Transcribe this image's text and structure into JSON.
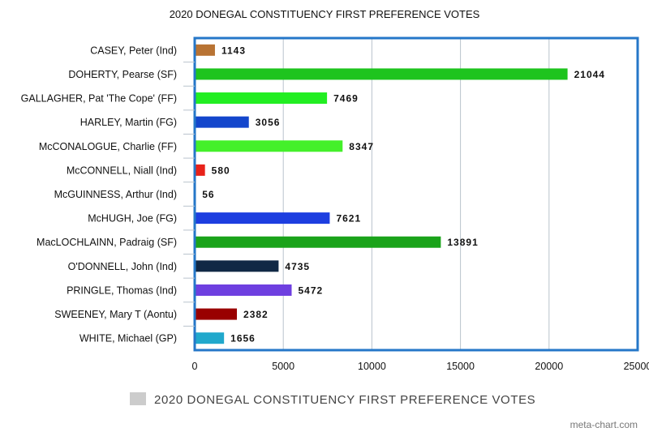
{
  "chart_data": {
    "type": "bar",
    "orientation": "horizontal",
    "title": "2020 DONEGAL CONSTITUENCY FIRST PREFERENCE VOTES",
    "xlabel": "",
    "ylabel": "",
    "xlim": [
      0,
      25000
    ],
    "xticks": [
      0,
      5000,
      10000,
      15000,
      20000,
      25000
    ],
    "grid": true,
    "legend_position": "bottom",
    "series": [
      {
        "name": "2020 DONEGAL CONSTITUENCY FIRST PREFERENCE VOTES",
        "legend_color": "#cccccc",
        "values": [
          1143,
          21044,
          7469,
          3056,
          8347,
          580,
          56,
          7621,
          13891,
          4735,
          5472,
          2382,
          1656
        ]
      }
    ],
    "categories": [
      "CASEY, Peter (Ind)",
      "DOHERTY, Pearse (SF)",
      "GALLAGHER, Pat 'The Cope' (FF)",
      "HARLEY, Martin (FG)",
      "McCONALOGUE, Charlie (FF)",
      "McCONNELL, Niall (Ind)",
      "McGUINNESS, Arthur (Ind)",
      "McHUGH, Joe (FG)",
      "MacLOCHLAINN, Padraig (SF)",
      "O'DONNELL, John (Ind)",
      "PRINGLE, Thomas (Ind)",
      "SWEENEY, Mary T (Aontu)",
      "WHITE, Michael (GP)"
    ],
    "bar_colors": [
      "#b87333",
      "#1ec41e",
      "#22ee22",
      "#1446cc",
      "#44f02a",
      "#e8221a",
      "#d9d9d9",
      "#1d3ee0",
      "#1aa31a",
      "#102845",
      "#6e3fe0",
      "#990000",
      "#21a8cc"
    ]
  },
  "watermark": "meta-chart.com",
  "colors": {
    "frame": "#2577c8",
    "grid": "#b9c3cc"
  }
}
